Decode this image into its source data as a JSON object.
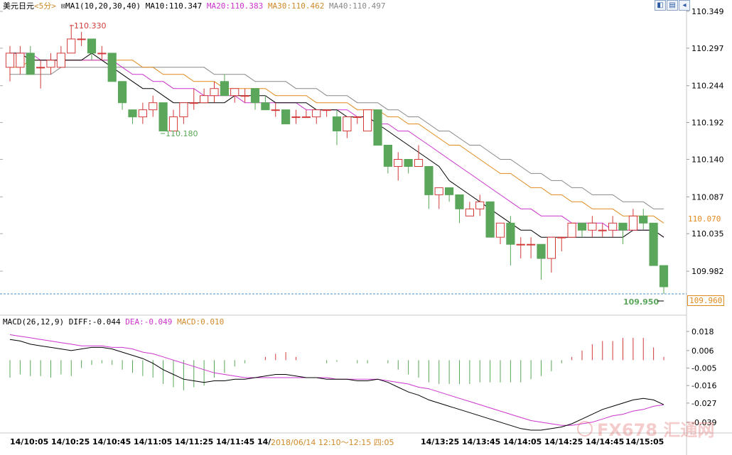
{
  "header": {
    "symbol": "美元日元",
    "period": "<5分>",
    "ma_label": "MA1(10,20,30,40)",
    "ma10": "MA10:110.347",
    "ma20": "MA20:110.383",
    "ma30": "MA30:110.462",
    "ma40": "MA40:110.497"
  },
  "macd_header": {
    "name": "MACD(26,12,9)",
    "diff": "DIFF:-0.044",
    "dea": "DEA:-0.049",
    "macd": "MACD:0.010"
  },
  "price_axis": [
    "110.349",
    "110.297",
    "110.244",
    "110.192",
    "110.140",
    "110.087",
    "110.035",
    "109.982"
  ],
  "macd_axis": [
    "0.018",
    "0.006",
    "-0.005",
    "-0.016",
    "-0.027",
    "-0.039"
  ],
  "annotations": {
    "high": "110.330",
    "low": "110.180",
    "last_low": "109.950"
  },
  "price_tags": {
    "ma_tag": "110.070",
    "current": "109.960"
  },
  "time_axis": [
    "14/10:05",
    "14/10:25",
    "14/10:45",
    "14/11:05",
    "14/11:25",
    "14/11:45",
    "14/",
    "14/13:25",
    "14/13:45",
    "14/14:05",
    "14/14:25",
    "14/14:45",
    "14/15:05"
  ],
  "tooltip": "2018/06/14  12:10～12:15  四:05",
  "watermark": "FX678 汇通网",
  "colors": {
    "up": "#d23a3a",
    "down": "#5aa65a",
    "ma10": "#000000",
    "ma20": "#cc33cc",
    "ma30": "#e08a1e",
    "ma40": "#888888",
    "dea": "#cc33cc",
    "macd_hdr": "#d08a2a"
  },
  "chart_data": {
    "type": "candlestick",
    "ylim": [
      109.95,
      110.349
    ],
    "candles": [
      {
        "o": 110.27,
        "c": 110.29,
        "h": 110.3,
        "l": 110.25
      },
      {
        "o": 110.27,
        "c": 110.29,
        "h": 110.3,
        "l": 110.26
      },
      {
        "o": 110.29,
        "c": 110.26,
        "h": 110.3,
        "l": 110.26
      },
      {
        "o": 110.27,
        "c": 110.27,
        "h": 110.28,
        "l": 110.24
      },
      {
        "o": 110.27,
        "c": 110.28,
        "h": 110.29,
        "l": 110.26
      },
      {
        "o": 110.27,
        "c": 110.29,
        "h": 110.3,
        "l": 110.27
      },
      {
        "o": 110.29,
        "c": 110.31,
        "h": 110.33,
        "l": 110.29
      },
      {
        "o": 110.31,
        "c": 110.31,
        "h": 110.32,
        "l": 110.3
      },
      {
        "o": 110.31,
        "c": 110.29,
        "h": 110.31,
        "l": 110.28
      },
      {
        "o": 110.29,
        "c": 110.29,
        "h": 110.3,
        "l": 110.28
      },
      {
        "o": 110.29,
        "c": 110.25,
        "h": 110.29,
        "l": 110.25
      },
      {
        "o": 110.25,
        "c": 110.22,
        "h": 110.25,
        "l": 110.21
      },
      {
        "o": 110.21,
        "c": 110.2,
        "h": 110.21,
        "l": 110.19
      },
      {
        "o": 110.2,
        "c": 110.21,
        "h": 110.22,
        "l": 110.19
      },
      {
        "o": 110.21,
        "c": 110.22,
        "h": 110.23,
        "l": 110.2
      },
      {
        "o": 110.22,
        "c": 110.18,
        "h": 110.22,
        "l": 110.18
      },
      {
        "o": 110.18,
        "c": 110.2,
        "h": 110.21,
        "l": 110.18
      },
      {
        "o": 110.2,
        "c": 110.22,
        "h": 110.22,
        "l": 110.19
      },
      {
        "o": 110.22,
        "c": 110.22,
        "h": 110.24,
        "l": 110.21
      },
      {
        "o": 110.22,
        "c": 110.23,
        "h": 110.24,
        "l": 110.22
      },
      {
        "o": 110.23,
        "c": 110.24,
        "h": 110.25,
        "l": 110.22
      },
      {
        "o": 110.25,
        "c": 110.23,
        "h": 110.26,
        "l": 110.23
      },
      {
        "o": 110.23,
        "c": 110.24,
        "h": 110.24,
        "l": 110.22
      },
      {
        "o": 110.23,
        "c": 110.23,
        "h": 110.24,
        "l": 110.22
      },
      {
        "o": 110.24,
        "c": 110.22,
        "h": 110.24,
        "l": 110.21
      },
      {
        "o": 110.22,
        "c": 110.21,
        "h": 110.23,
        "l": 110.21
      },
      {
        "o": 110.21,
        "c": 110.21,
        "h": 110.22,
        "l": 110.2
      },
      {
        "o": 110.21,
        "c": 110.19,
        "h": 110.21,
        "l": 110.19
      },
      {
        "o": 110.2,
        "c": 110.2,
        "h": 110.21,
        "l": 110.19
      },
      {
        "o": 110.2,
        "c": 110.2,
        "h": 110.21,
        "l": 110.2
      },
      {
        "o": 110.2,
        "c": 110.21,
        "h": 110.21,
        "l": 110.19
      },
      {
        "o": 110.21,
        "c": 110.21,
        "h": 110.21,
        "l": 110.2
      },
      {
        "o": 110.2,
        "c": 110.18,
        "h": 110.21,
        "l": 110.16
      },
      {
        "o": 110.18,
        "c": 110.2,
        "h": 110.2,
        "l": 110.17
      },
      {
        "o": 110.2,
        "c": 110.2,
        "h": 110.2,
        "l": 110.19
      },
      {
        "o": 110.18,
        "c": 110.21,
        "h": 110.21,
        "l": 110.18
      },
      {
        "o": 110.21,
        "c": 110.16,
        "h": 110.21,
        "l": 110.16
      },
      {
        "o": 110.16,
        "c": 110.13,
        "h": 110.16,
        "l": 110.12
      },
      {
        "o": 110.13,
        "c": 110.14,
        "h": 110.15,
        "l": 110.11
      },
      {
        "o": 110.14,
        "c": 110.13,
        "h": 110.14,
        "l": 110.12
      },
      {
        "o": 110.13,
        "c": 110.14,
        "h": 110.16,
        "l": 110.13
      },
      {
        "o": 110.13,
        "c": 110.09,
        "h": 110.13,
        "l": 110.07
      },
      {
        "o": 110.09,
        "c": 110.1,
        "h": 110.1,
        "l": 110.07
      },
      {
        "o": 110.1,
        "c": 110.09,
        "h": 110.1,
        "l": 110.08
      },
      {
        "o": 110.09,
        "c": 110.07,
        "h": 110.09,
        "l": 110.05
      },
      {
        "o": 110.06,
        "c": 110.07,
        "h": 110.08,
        "l": 110.06
      },
      {
        "o": 110.07,
        "c": 110.08,
        "h": 110.09,
        "l": 110.06
      },
      {
        "o": 110.08,
        "c": 110.03,
        "h": 110.08,
        "l": 110.03
      },
      {
        "o": 110.03,
        "c": 110.05,
        "h": 110.05,
        "l": 110.02
      },
      {
        "o": 110.05,
        "c": 110.02,
        "h": 110.06,
        "l": 109.99
      },
      {
        "o": 110.02,
        "c": 110.02,
        "h": 110.03,
        "l": 110.0
      },
      {
        "o": 110.02,
        "c": 110.02,
        "h": 110.03,
        "l": 110.0
      },
      {
        "o": 110.02,
        "c": 110.0,
        "h": 110.02,
        "l": 109.97
      },
      {
        "o": 110.0,
        "c": 110.03,
        "h": 110.03,
        "l": 109.98
      },
      {
        "o": 110.03,
        "c": 110.03,
        "h": 110.03,
        "l": 110.01
      },
      {
        "o": 110.03,
        "c": 110.05,
        "h": 110.05,
        "l": 110.03
      },
      {
        "o": 110.05,
        "c": 110.04,
        "h": 110.05,
        "l": 110.03
      },
      {
        "o": 110.04,
        "c": 110.05,
        "h": 110.06,
        "l": 110.03
      },
      {
        "o": 110.04,
        "c": 110.04,
        "h": 110.05,
        "l": 110.03
      },
      {
        "o": 110.04,
        "c": 110.05,
        "h": 110.06,
        "l": 110.03
      },
      {
        "o": 110.05,
        "c": 110.04,
        "h": 110.05,
        "l": 110.02
      },
      {
        "o": 110.04,
        "c": 110.06,
        "h": 110.07,
        "l": 110.04
      },
      {
        "o": 110.06,
        "c": 110.05,
        "h": 110.07,
        "l": 110.04
      },
      {
        "o": 110.05,
        "c": 109.99,
        "h": 110.05,
        "l": 109.99
      },
      {
        "o": 109.99,
        "c": 109.96,
        "h": 109.99,
        "l": 109.95
      }
    ],
    "ma10": [
      110.29,
      110.29,
      110.28,
      110.28,
      110.28,
      110.28,
      110.28,
      110.28,
      110.29,
      110.28,
      110.27,
      110.26,
      110.25,
      110.24,
      110.24,
      110.23,
      110.22,
      110.22,
      110.22,
      110.22,
      110.22,
      110.22,
      110.23,
      110.23,
      110.23,
      110.23,
      110.22,
      110.22,
      110.22,
      110.22,
      110.21,
      110.21,
      110.21,
      110.2,
      110.2,
      110.2,
      110.19,
      110.18,
      110.17,
      110.16,
      110.15,
      110.14,
      110.13,
      110.11,
      110.1,
      110.09,
      110.08,
      110.07,
      110.06,
      110.05,
      110.04,
      110.04,
      110.03,
      110.03,
      110.03,
      110.03,
      110.03,
      110.03,
      110.03,
      110.03,
      110.03,
      110.04,
      110.04,
      110.04,
      110.03
    ],
    "ma20": [
      110.29,
      110.29,
      110.29,
      110.28,
      110.28,
      110.28,
      110.28,
      110.28,
      110.28,
      110.28,
      110.28,
      110.27,
      110.26,
      110.26,
      110.25,
      110.25,
      110.24,
      110.24,
      110.24,
      110.23,
      110.23,
      110.23,
      110.23,
      110.22,
      110.22,
      110.22,
      110.22,
      110.22,
      110.22,
      110.21,
      110.21,
      110.21,
      110.21,
      110.21,
      110.2,
      110.2,
      110.19,
      110.19,
      110.18,
      110.18,
      110.17,
      110.16,
      110.15,
      110.14,
      110.13,
      110.12,
      110.11,
      110.1,
      110.09,
      110.08,
      110.07,
      110.07,
      110.06,
      110.06,
      110.06,
      110.05,
      110.05,
      110.05,
      110.05,
      110.04,
      110.04,
      110.04,
      110.04,
      110.04,
      110.03
    ],
    "ma30": [
      110.27,
      110.27,
      110.28,
      110.28,
      110.28,
      110.28,
      110.28,
      110.28,
      110.28,
      110.28,
      110.28,
      110.28,
      110.28,
      110.27,
      110.27,
      110.26,
      110.26,
      110.26,
      110.25,
      110.25,
      110.25,
      110.24,
      110.24,
      110.24,
      110.24,
      110.24,
      110.23,
      110.23,
      110.23,
      110.23,
      110.22,
      110.22,
      110.22,
      110.22,
      110.21,
      110.21,
      110.21,
      110.2,
      110.2,
      110.19,
      110.19,
      110.18,
      110.17,
      110.16,
      110.16,
      110.15,
      110.14,
      110.13,
      110.12,
      110.12,
      110.11,
      110.1,
      110.1,
      110.09,
      110.09,
      110.08,
      110.08,
      110.07,
      110.07,
      110.07,
      110.06,
      110.06,
      110.06,
      110.06,
      110.05
    ],
    "ma40": [
      110.26,
      110.26,
      110.26,
      110.26,
      110.26,
      110.27,
      110.27,
      110.27,
      110.27,
      110.27,
      110.27,
      110.27,
      110.27,
      110.27,
      110.27,
      110.27,
      110.27,
      110.27,
      110.27,
      110.27,
      110.26,
      110.26,
      110.26,
      110.26,
      110.25,
      110.25,
      110.25,
      110.25,
      110.24,
      110.24,
      110.24,
      110.23,
      110.23,
      110.23,
      110.22,
      110.22,
      110.22,
      110.21,
      110.21,
      110.2,
      110.2,
      110.19,
      110.18,
      110.18,
      110.17,
      110.16,
      110.16,
      110.15,
      110.14,
      110.14,
      110.13,
      110.12,
      110.12,
      110.11,
      110.11,
      110.1,
      110.1,
      110.09,
      110.09,
      110.09,
      110.08,
      110.08,
      110.08,
      110.07,
      110.07
    ],
    "macd_ylim": [
      -0.044,
      0.022
    ],
    "diff": [
      0.013,
      0.012,
      0.01,
      0.009,
      0.008,
      0.007,
      0.006,
      0.007,
      0.008,
      0.008,
      0.007,
      0.005,
      0.003,
      0.001,
      -0.002,
      -0.006,
      -0.009,
      -0.012,
      -0.013,
      -0.014,
      -0.013,
      -0.013,
      -0.012,
      -0.012,
      -0.011,
      -0.01,
      -0.009,
      -0.009,
      -0.01,
      -0.011,
      -0.011,
      -0.012,
      -0.012,
      -0.012,
      -0.013,
      -0.013,
      -0.012,
      -0.014,
      -0.017,
      -0.02,
      -0.022,
      -0.025,
      -0.027,
      -0.029,
      -0.031,
      -0.033,
      -0.035,
      -0.037,
      -0.039,
      -0.041,
      -0.043,
      -0.044,
      -0.044,
      -0.043,
      -0.042,
      -0.04,
      -0.037,
      -0.034,
      -0.031,
      -0.029,
      -0.027,
      -0.025,
      -0.024,
      -0.025,
      -0.028
    ],
    "dea": [
      0.016,
      0.015,
      0.014,
      0.013,
      0.012,
      0.011,
      0.01,
      0.009,
      0.009,
      0.009,
      0.008,
      0.008,
      0.007,
      0.005,
      0.004,
      0.002,
      0.0,
      -0.002,
      -0.004,
      -0.006,
      -0.008,
      -0.009,
      -0.01,
      -0.011,
      -0.011,
      -0.011,
      -0.011,
      -0.011,
      -0.011,
      -0.011,
      -0.011,
      -0.011,
      -0.012,
      -0.012,
      -0.012,
      -0.012,
      -0.012,
      -0.013,
      -0.014,
      -0.015,
      -0.017,
      -0.018,
      -0.02,
      -0.022,
      -0.024,
      -0.026,
      -0.028,
      -0.03,
      -0.032,
      -0.034,
      -0.036,
      -0.038,
      -0.039,
      -0.04,
      -0.041,
      -0.041,
      -0.04,
      -0.039,
      -0.037,
      -0.035,
      -0.034,
      -0.032,
      -0.031,
      -0.029,
      -0.028
    ],
    "macd_bars": [
      -0.011,
      -0.009,
      -0.01,
      -0.01,
      -0.011,
      -0.009,
      -0.01,
      -0.005,
      -0.003,
      -0.002,
      -0.003,
      -0.006,
      -0.008,
      -0.01,
      -0.011,
      -0.015,
      -0.017,
      -0.019,
      -0.017,
      -0.016,
      -0.011,
      -0.008,
      -0.004,
      -0.002,
      0.0,
      0.002,
      0.004,
      0.005,
      0.002,
      0.0,
      0.0,
      -0.002,
      -0.001,
      0.0,
      -0.002,
      -0.002,
      0.0,
      -0.002,
      -0.006,
      -0.009,
      -0.011,
      -0.014,
      -0.015,
      -0.015,
      -0.015,
      -0.015,
      -0.014,
      -0.014,
      -0.014,
      -0.014,
      -0.014,
      -0.012,
      -0.01,
      -0.007,
      -0.002,
      0.002,
      0.006,
      0.01,
      0.012,
      0.012,
      0.014,
      0.014,
      0.014,
      0.008,
      0.002
    ]
  }
}
